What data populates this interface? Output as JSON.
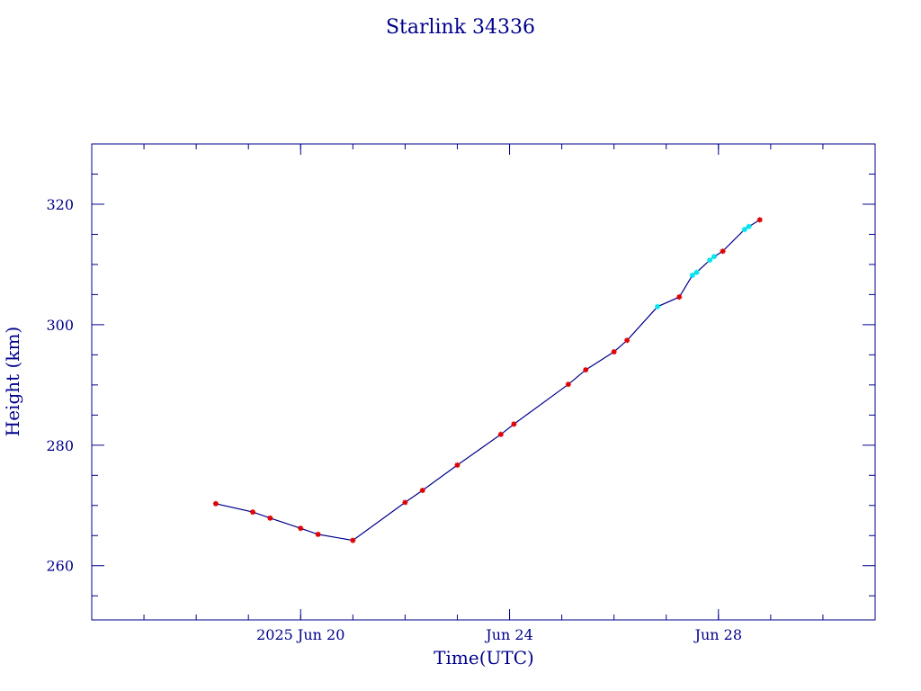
{
  "chart_data": {
    "type": "line",
    "title": "Starlink 34336",
    "xlabel": "Time(UTC)",
    "ylabel": "Height (km)",
    "x_axis": {
      "unit": "date (2025, June)",
      "range": [
        "2025-06-16T00:00",
        "2025-07-01T00:00"
      ],
      "tick_labels": [
        {
          "date": "2025-06-20T00:00",
          "label": "2025 Jun 20"
        },
        {
          "date": "2025-06-24T00:00",
          "label": "Jun 24"
        },
        {
          "date": "2025-06-28T00:00",
          "label": "Jun 28"
        }
      ],
      "minor_tick_dates": [
        "2025-06-17",
        "2025-06-18",
        "2025-06-19",
        "2025-06-20",
        "2025-06-21",
        "2025-06-22",
        "2025-06-23",
        "2025-06-24",
        "2025-06-25",
        "2025-06-26",
        "2025-06-27",
        "2025-06-28",
        "2025-06-29",
        "2025-06-30"
      ]
    },
    "y_axis": {
      "range": [
        251,
        330
      ],
      "ticks": [
        260,
        280,
        300,
        320
      ],
      "minor_ticks": [
        255,
        265,
        270,
        275,
        285,
        290,
        295,
        305,
        310,
        315,
        325
      ]
    },
    "grid": false,
    "legend": "none",
    "colors": {
      "axes": "#00008b",
      "line": "#00008b",
      "red_markers": "#e00000",
      "cyan_markers": "#00e5ee"
    },
    "series": [
      {
        "marker_color": "red",
        "points": [
          {
            "t": "2025-06-18T09:00",
            "y": 270.3
          },
          {
            "t": "2025-06-19T02:00",
            "y": 268.9
          },
          {
            "t": "2025-06-19T10:00",
            "y": 267.9
          },
          {
            "t": "2025-06-20T00:00",
            "y": 266.2
          },
          {
            "t": "2025-06-20T08:00",
            "y": 265.2
          },
          {
            "t": "2025-06-21T00:00",
            "y": 264.2
          },
          {
            "t": "2025-06-22T00:00",
            "y": 270.5
          },
          {
            "t": "2025-06-22T08:00",
            "y": 272.5
          },
          {
            "t": "2025-06-23T00:00",
            "y": 276.7
          },
          {
            "t": "2025-06-23T20:00",
            "y": 281.8
          },
          {
            "t": "2025-06-24T02:00",
            "y": 283.5
          },
          {
            "t": "2025-06-25T03:00",
            "y": 290.1
          },
          {
            "t": "2025-06-25T11:00",
            "y": 292.5
          },
          {
            "t": "2025-06-26T00:00",
            "y": 295.5
          },
          {
            "t": "2025-06-26T06:00",
            "y": 297.4
          },
          {
            "t": "2025-06-27T06:00",
            "y": 304.6
          },
          {
            "t": "2025-06-28T02:00",
            "y": 312.2
          },
          {
            "t": "2025-06-28T19:00",
            "y": 317.4
          }
        ]
      },
      {
        "marker_color": "cyan",
        "points": [
          {
            "t": "2025-06-26T20:00",
            "y": 303.0
          },
          {
            "t": "2025-06-27T12:00",
            "y": 308.2
          },
          {
            "t": "2025-06-27T14:00",
            "y": 308.7
          },
          {
            "t": "2025-06-27T20:00",
            "y": 310.7
          },
          {
            "t": "2025-06-27T22:00",
            "y": 311.3
          },
          {
            "t": "2025-06-28T12:00",
            "y": 315.8
          },
          {
            "t": "2025-06-28T14:00",
            "y": 316.3
          }
        ]
      }
    ]
  }
}
